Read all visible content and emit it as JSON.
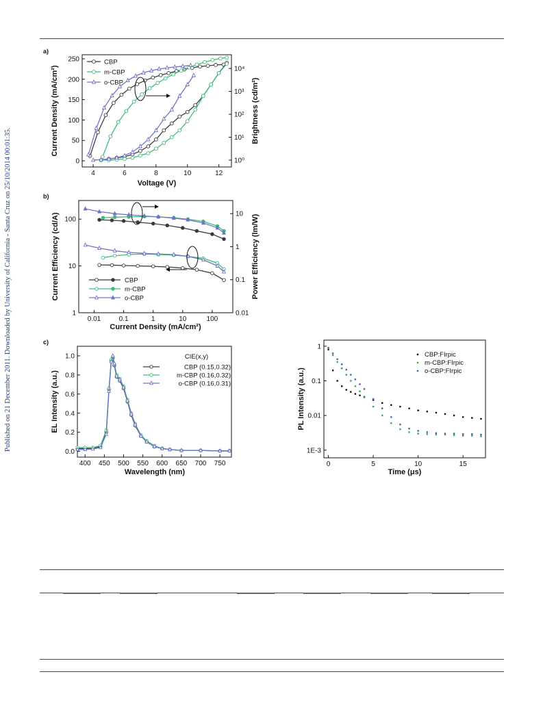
{
  "side_note": "Published on 21 December 2011. Downloaded by University of California - Santa Cruz on 25/10/2014 00:01:35.",
  "colors": {
    "cbp": "#3a3a3a",
    "mcbp": "#3dbb78",
    "ocbp": "#6f74c8",
    "fcbp": "#111111",
    "fm": "#2fa66a",
    "fo": "#4f5cb8"
  },
  "panels": {
    "a": {
      "label": "a)",
      "xlabel": "Voltage (V)",
      "ylabel": "Current Density (mA/cm²)",
      "y2label": "Brightness (cd/m²)",
      "xticks": [
        "4",
        "6",
        "8",
        "10",
        "12"
      ],
      "yticks": [
        "0",
        "50",
        "100",
        "150",
        "200",
        "250"
      ],
      "y2ticks": [
        "10⁰",
        "10¹",
        "10²",
        "10³",
        "10⁴"
      ],
      "legend": [
        "CBP",
        "m-CBP",
        "o-CBP"
      ]
    },
    "b": {
      "label": "b)",
      "xlabel": "Current Density (mA/cm²)",
      "ylabel": "Current Efficiency (cd/A)",
      "y2label": "Power Efficiency (lm/W)",
      "xticks": [
        "0.01",
        "0.1",
        "1",
        "10",
        "100"
      ],
      "yticks": [
        "1",
        "10",
        "100"
      ],
      "y2ticks": [
        "0.01",
        "0.1",
        "1",
        "10"
      ],
      "legend": [
        "CBP",
        "m-CBP",
        "o-CBP"
      ]
    },
    "c": {
      "label": "c)",
      "xlabel": "Wavelength (nm)",
      "ylabel": "EL Intensity (a.u.)",
      "xticks": [
        "400",
        "450",
        "500",
        "550",
        "600",
        "650",
        "700",
        "750"
      ],
      "yticks": [
        "0.0",
        "0.2",
        "0.4",
        "0.6",
        "0.8",
        "1.0"
      ],
      "legend_title": "CIE(x,y)",
      "legend": [
        "CBP (0.15,0.32)",
        "m-CBP (0.16,0.32)",
        "o-CBP (0.16,0.31)"
      ]
    },
    "d": {
      "xlabel": "Time (μs)",
      "ylabel": "PL Intensity (a.u.)",
      "xticks": [
        "0",
        "5",
        "10",
        "15"
      ],
      "yticks": [
        "1E-3",
        "0.01",
        "0.1",
        "1"
      ],
      "legend": [
        "CBP:FIrpic",
        "m-CBP:FIrpic",
        "o-CBP:FIrpic"
      ]
    }
  },
  "chart_data": [
    {
      "type": "line",
      "panel": "a",
      "xlabel": "Voltage (V)",
      "ylabel": "Current Density (mA/cm²)",
      "y2label": "Brightness (cd/m²)",
      "xlim": [
        3.3,
        12.8
      ],
      "ylim": [
        -15,
        260
      ],
      "y2lim_log10": [
        -0.3,
        4.6
      ],
      "series": [
        {
          "name": "CBP",
          "axis": "y",
          "x": [
            3.8,
            4.3,
            4.8,
            5.3,
            5.8,
            6.3,
            6.8,
            7.3,
            7.8,
            8.3,
            8.8,
            9.3,
            9.8,
            10.3,
            10.8,
            11.3,
            11.8,
            12.3
          ],
          "y": [
            12,
            70,
            112,
            142,
            162,
            177,
            188,
            197,
            204,
            210,
            215,
            220,
            224,
            228,
            231,
            233,
            235,
            236
          ]
        },
        {
          "name": "CBP",
          "axis": "y2",
          "x": [
            4.5,
            5.0,
            5.5,
            6.0,
            6.5,
            7.0,
            7.5,
            8.0,
            8.5,
            9.0,
            9.5,
            10.0,
            10.5,
            11.0,
            11.5,
            12.0,
            12.5
          ],
          "y": [
            0,
            0.05,
            0.1,
            0.15,
            0.25,
            0.4,
            0.6,
            0.9,
            1.3,
            1.6,
            1.9,
            2.1,
            2.4,
            2.8,
            3.3,
            3.8,
            4.25
          ]
        },
        {
          "name": "m-CBP",
          "axis": "y",
          "x": [
            4.6,
            5.1,
            5.6,
            6.1,
            6.6,
            7.1,
            7.6,
            8.1,
            8.6,
            9.1,
            9.6,
            10.1,
            10.6,
            11.1,
            11.6,
            12.1,
            12.5
          ],
          "y": [
            10,
            60,
            95,
            122,
            145,
            163,
            178,
            191,
            202,
            212,
            221,
            229,
            236,
            242,
            247,
            251,
            253
          ]
        },
        {
          "name": "m-CBP",
          "axis": "y2",
          "x": [
            4.5,
            5.0,
            5.5,
            6.0,
            6.5,
            7.0,
            7.5,
            8.0,
            8.5,
            9.0,
            9.5,
            10.0,
            10.5,
            11.0,
            11.5,
            12.0,
            12.5
          ],
          "y": [
            0,
            0,
            0.02,
            0.05,
            0.1,
            0.2,
            0.3,
            0.5,
            0.75,
            1.0,
            1.3,
            1.7,
            2.2,
            2.8,
            3.3,
            3.8,
            4.2
          ]
        },
        {
          "name": "o-CBP",
          "axis": "y",
          "x": [
            3.7,
            4.2,
            4.7,
            5.2,
            5.7,
            6.2,
            6.7,
            7.2,
            7.7,
            8.2,
            8.7,
            9.2,
            9.7,
            10.2
          ],
          "y": [
            15,
            80,
            130,
            160,
            182,
            197,
            208,
            216,
            221,
            225,
            228,
            230,
            232,
            234
          ]
        },
        {
          "name": "o-CBP",
          "axis": "y2",
          "x": [
            4.0,
            4.5,
            5.0,
            5.5,
            6.0,
            6.5,
            7.0,
            7.5,
            8.0,
            8.5,
            9.0,
            9.5,
            10.0,
            10.4
          ],
          "y": [
            0,
            0.02,
            0.05,
            0.1,
            0.2,
            0.35,
            0.6,
            0.9,
            1.3,
            1.8,
            2.2,
            2.8,
            3.3,
            3.7
          ]
        }
      ]
    },
    {
      "type": "line",
      "panel": "b",
      "xlabel": "Current Density (mA/cm²)",
      "ylabel": "Current Efficiency (cd/A)",
      "y2label": "Power Efficiency (lm/W)",
      "x_scale": "log",
      "xlim": [
        0.003,
        500
      ],
      "ylim": [
        1,
        250
      ],
      "y2lim": [
        0.01,
        25
      ],
      "series": [
        {
          "name": "CBP (current efficiency)",
          "axis": "y",
          "x": [
            0.015,
            0.04,
            0.1,
            0.3,
            1,
            3,
            10,
            30,
            100,
            250
          ],
          "y": [
            10.5,
            10.4,
            10.2,
            10.0,
            9.8,
            9.5,
            9.0,
            8.3,
            7.0,
            5.0
          ]
        },
        {
          "name": "CBP (power efficiency)",
          "axis": "y2",
          "x": [
            0.015,
            0.04,
            0.1,
            0.3,
            1,
            3,
            10,
            30,
            100,
            250
          ],
          "y": [
            6.5,
            6.3,
            6.0,
            5.5,
            5.0,
            4.4,
            3.7,
            3.0,
            2.4,
            1.7
          ]
        },
        {
          "name": "m-CBP (current efficiency)",
          "axis": "y",
          "x": [
            0.02,
            0.05,
            0.15,
            0.5,
            1.5,
            5,
            15,
            50,
            150,
            250
          ],
          "y": [
            15,
            16.5,
            17.5,
            18,
            17.5,
            17,
            16,
            14.5,
            11.5,
            8.5
          ]
        },
        {
          "name": "m-CBP (power efficiency)",
          "axis": "y2",
          "x": [
            0.02,
            0.05,
            0.15,
            0.5,
            1.5,
            5,
            15,
            50,
            150,
            250
          ],
          "y": [
            7.5,
            7.8,
            8.0,
            8.2,
            8.0,
            7.5,
            6.8,
            5.8,
            4.2,
            3.0
          ]
        },
        {
          "name": "o-CBP (current efficiency)",
          "axis": "y",
          "x": [
            0.005,
            0.015,
            0.05,
            0.15,
            0.5,
            1.5,
            5,
            15,
            50,
            150,
            250
          ],
          "y": [
            28,
            24,
            21,
            19.5,
            18.5,
            18,
            17.5,
            16,
            13.5,
            10,
            7.5
          ]
        },
        {
          "name": "o-CBP (power efficiency)",
          "axis": "y2",
          "x": [
            0.005,
            0.015,
            0.05,
            0.15,
            0.5,
            1.5,
            5,
            15,
            50,
            150,
            250
          ],
          "y": [
            14,
            11.5,
            10,
            9.2,
            8.5,
            8.0,
            7.3,
            6.5,
            5.2,
            3.7,
            2.6
          ]
        }
      ]
    },
    {
      "type": "line",
      "panel": "c",
      "xlabel": "Wavelength (nm)",
      "ylabel": "EL Intensity (a.u.)",
      "xlim": [
        380,
        780
      ],
      "ylim": [
        -0.06,
        1.1
      ],
      "series": [
        {
          "name": "CBP (0.15,0.32)",
          "x": [
            380,
            400,
            420,
            440,
            455,
            462,
            468,
            472,
            476,
            482,
            490,
            500,
            510,
            520,
            530,
            545,
            560,
            580,
            600,
            620,
            650,
            700,
            750,
            775
          ],
          "y": [
            0.03,
            0.03,
            0.03,
            0.05,
            0.2,
            0.65,
            0.95,
            0.98,
            0.9,
            0.78,
            0.74,
            0.66,
            0.52,
            0.38,
            0.27,
            0.16,
            0.1,
            0.05,
            0.03,
            0.02,
            0.01,
            0.01,
            0.005,
            0.005
          ]
        },
        {
          "name": "m-CBP (0.16,0.32)",
          "x": [
            380,
            400,
            420,
            440,
            455,
            462,
            468,
            472,
            476,
            482,
            490,
            500,
            510,
            520,
            530,
            545,
            560,
            580,
            600,
            620,
            650,
            700,
            750,
            775
          ],
          "y": [
            0.04,
            0.04,
            0.04,
            0.06,
            0.22,
            0.66,
            0.96,
            0.99,
            0.91,
            0.8,
            0.76,
            0.68,
            0.54,
            0.4,
            0.29,
            0.17,
            0.11,
            0.06,
            0.03,
            0.02,
            0.01,
            0.01,
            0.005,
            0.005
          ]
        },
        {
          "name": "o-CBP (0.16,0.31)",
          "x": [
            380,
            400,
            420,
            440,
            455,
            462,
            468,
            472,
            476,
            482,
            490,
            500,
            510,
            520,
            530,
            545,
            560,
            580,
            600,
            620,
            650,
            700,
            750,
            775
          ],
          "y": [
            0.02,
            0.02,
            0.025,
            0.04,
            0.18,
            0.63,
            0.94,
            1.0,
            0.92,
            0.79,
            0.75,
            0.67,
            0.53,
            0.39,
            0.28,
            0.16,
            0.1,
            0.05,
            0.03,
            0.02,
            0.01,
            0.01,
            0.005,
            0.005
          ]
        }
      ]
    },
    {
      "type": "scatter",
      "panel": "d",
      "xlabel": "Time (μs)",
      "ylabel": "PL Intensity (a.u.)",
      "y_scale": "log",
      "xlim": [
        -0.5,
        17.5
      ],
      "ylim": [
        0.0006,
        1.5
      ],
      "series": [
        {
          "name": "CBP:FIrpic",
          "x": [
            0,
            0.5,
            1,
            1.5,
            2,
            2.5,
            3,
            3.5,
            4,
            5,
            6,
            7,
            8,
            9,
            10,
            11,
            12,
            13,
            14,
            15,
            16,
            17
          ],
          "y": [
            0.8,
            0.2,
            0.1,
            0.07,
            0.055,
            0.048,
            0.042,
            0.038,
            0.034,
            0.028,
            0.023,
            0.02,
            0.018,
            0.016,
            0.014,
            0.013,
            0.012,
            0.011,
            0.01,
            0.009,
            0.0085,
            0.008
          ]
        },
        {
          "name": "m-CBP:FIrpic",
          "x": [
            0,
            0.5,
            1,
            1.5,
            2,
            2.5,
            3,
            3.5,
            4,
            5,
            6,
            7,
            8,
            9,
            10,
            11,
            12,
            13,
            14,
            15,
            16,
            17
          ],
          "y": [
            0.85,
            0.55,
            0.35,
            0.23,
            0.15,
            0.1,
            0.07,
            0.05,
            0.035,
            0.018,
            0.01,
            0.006,
            0.004,
            0.0033,
            0.003,
            0.0029,
            0.0028,
            0.0028,
            0.0027,
            0.0026,
            0.0026,
            0.0025
          ]
        },
        {
          "name": "o-CBP:FIrpic",
          "x": [
            0,
            0.5,
            1,
            1.5,
            2,
            2.5,
            3,
            3.5,
            4,
            5,
            6,
            7,
            8,
            9,
            10,
            11,
            12,
            13,
            14,
            15,
            16,
            17
          ],
          "y": [
            0.9,
            0.62,
            0.42,
            0.3,
            0.21,
            0.15,
            0.11,
            0.08,
            0.058,
            0.03,
            0.016,
            0.009,
            0.0055,
            0.0042,
            0.0036,
            0.0033,
            0.0031,
            0.003,
            0.003,
            0.0029,
            0.0029,
            0.0028
          ]
        }
      ]
    }
  ]
}
